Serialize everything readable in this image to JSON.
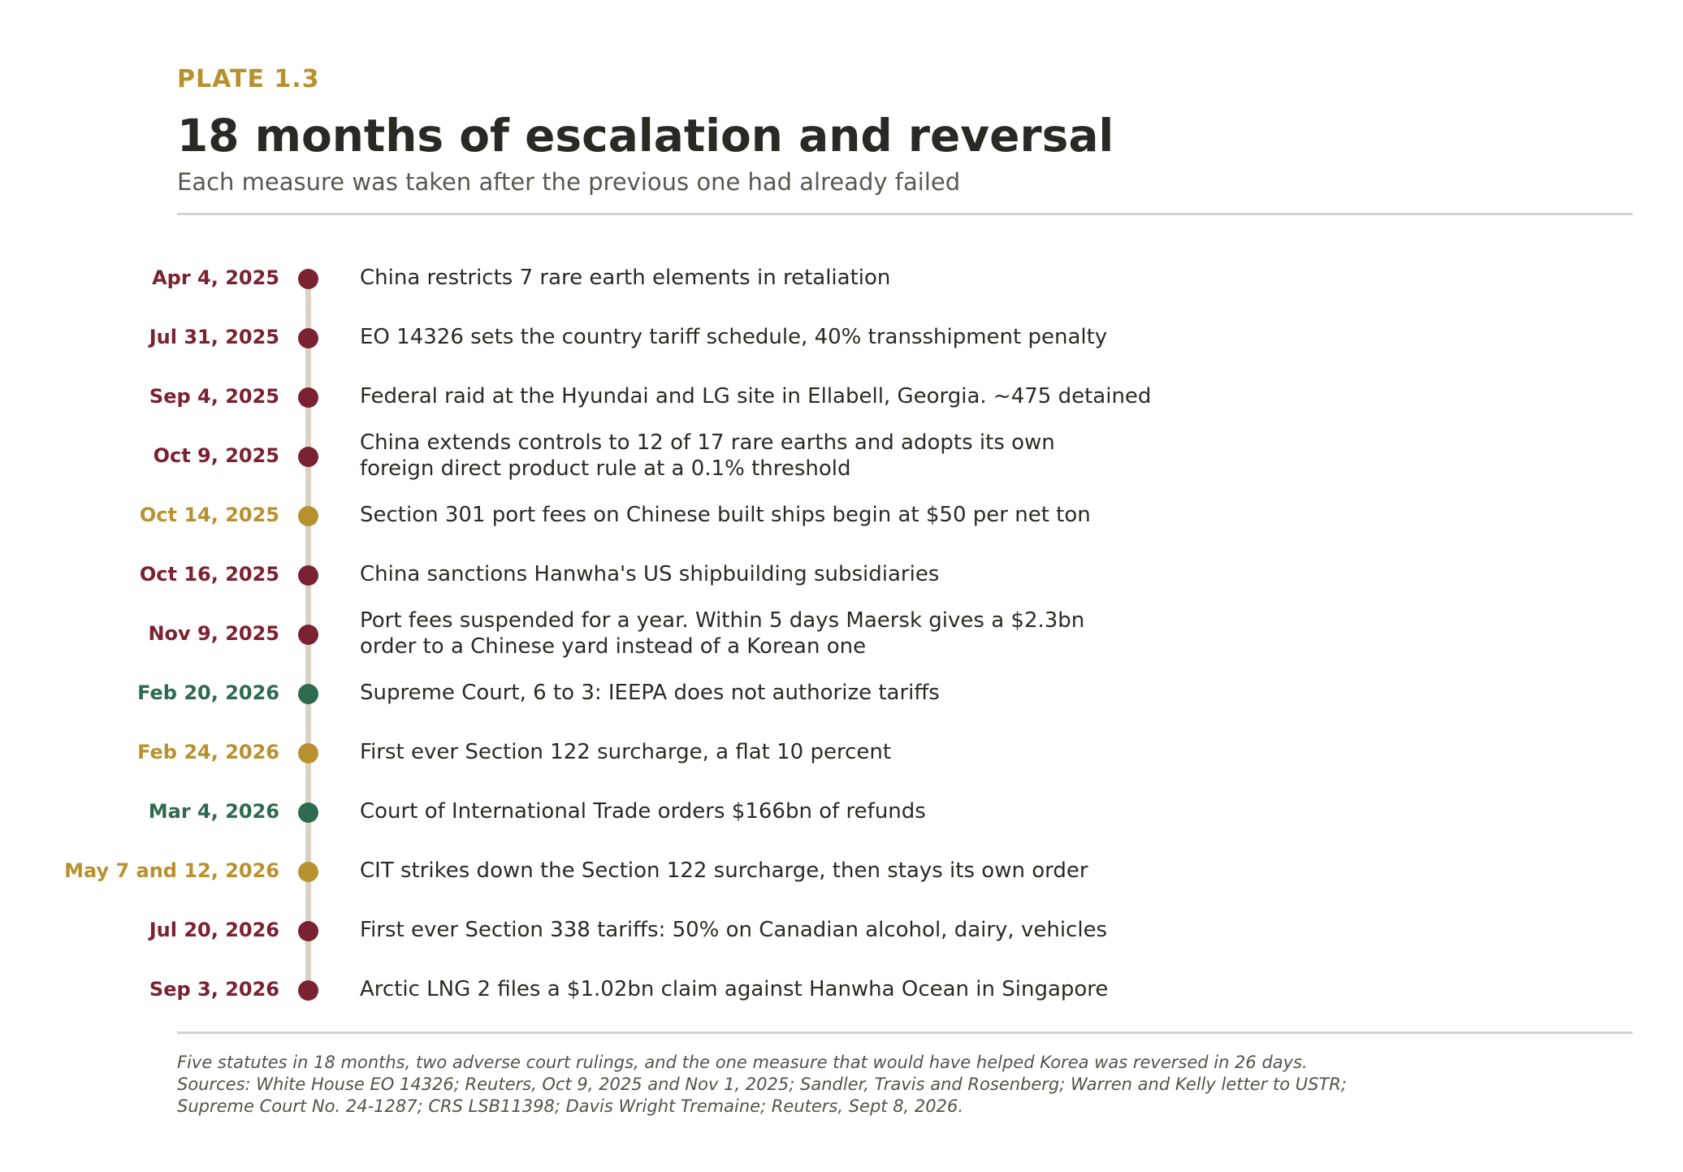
{
  "header": {
    "plate": "PLATE 1.3",
    "title": "18 months of escalation and reversal",
    "subtitle": "Each measure was taken after the previous one had already failed"
  },
  "colors": {
    "escalation": "#7a2231",
    "port_fees": "#b8912f",
    "court": "#2e6a50",
    "spine": "#d9d3c6",
    "rule": "#d6d4c8"
  },
  "events": [
    {
      "date": "Apr 4, 2025",
      "text": "China restricts 7 rare earth elements in retaliation",
      "color": "#7a2231"
    },
    {
      "date": "Jul 31, 2025",
      "text": "EO 14326 sets the country tariff schedule, 40% transshipment penalty",
      "color": "#7a2231"
    },
    {
      "date": "Sep 4, 2025",
      "text": "Federal raid at the Hyundai and LG site in Ellabell, Georgia. ~475 detained",
      "color": "#7a2231"
    },
    {
      "date": "Oct 9, 2025",
      "text": "China extends controls to 12 of 17 rare earths and adopts its own\nforeign direct product rule at a 0.1% threshold",
      "color": "#7a2231"
    },
    {
      "date": "Oct 14, 2025",
      "text": "Section 301 port fees on Chinese built ships begin at $50 per net ton",
      "color": "#b8912f"
    },
    {
      "date": "Oct 16, 2025",
      "text": "China sanctions Hanwha's US shipbuilding subsidiaries",
      "color": "#7a2231"
    },
    {
      "date": "Nov 9, 2025",
      "text": "Port fees suspended for a year. Within 5 days Maersk gives a $2.3bn\norder to a Chinese yard instead of a Korean one",
      "color": "#7a2231"
    },
    {
      "date": "Feb 20, 2026",
      "text": "Supreme Court, 6 to 3: IEEPA does not authorize tariffs",
      "color": "#2e6a50"
    },
    {
      "date": "Feb 24, 2026",
      "text": "First ever Section 122 surcharge, a flat 10 percent",
      "color": "#b8912f"
    },
    {
      "date": "Mar 4, 2026",
      "text": "Court of International Trade orders $166bn of refunds",
      "color": "#2e6a50"
    },
    {
      "date": "May 7 and 12, 2026",
      "text": "CIT strikes down the Section 122 surcharge, then stays its own order",
      "color": "#b8912f"
    },
    {
      "date": "Jul 20, 2026",
      "text": "First ever Section 338 tariffs: 50% on Canadian alcohol, dairy, vehicles",
      "color": "#7a2231"
    },
    {
      "date": "Sep 3, 2026",
      "text": "Arctic LNG 2 files a $1.02bn claim against Hanwha Ocean in Singapore",
      "color": "#7a2231"
    }
  ],
  "footnote": {
    "lines": [
      "Five statutes in 18 months, two adverse court rulings, and the one measure that would have helped Korea was reversed in 26 days.",
      "Sources: White House EO 14326; Reuters, Oct 9, 2025 and Nov 1, 2025; Sandler, Travis and Rosenberg; Warren and Kelly letter to USTR;",
      "Supreme Court No. 24-1287; CRS LSB11398; Davis Wright Tremaine; Reuters, Sept 8, 2026."
    ]
  }
}
